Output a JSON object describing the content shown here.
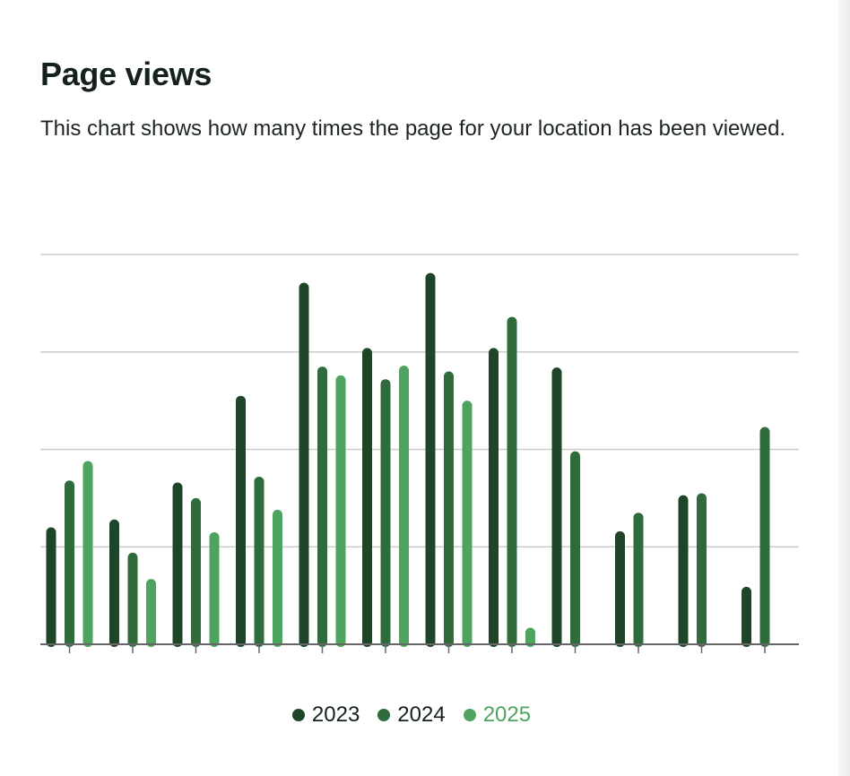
{
  "header": {
    "title": "Page views",
    "description": "This chart shows how many times the page for your location has been viewed."
  },
  "colors": {
    "series_2023": "#1f4528",
    "series_2024": "#2f6b3b",
    "series_2025": "#4ea45f",
    "gridline": "#cccccc",
    "axis": "#666666"
  },
  "chart_data": {
    "type": "bar",
    "categories": [
      "",
      "",
      "",
      "",
      "",
      "",
      "",
      "",
      "",
      "",
      "",
      ""
    ],
    "series": [
      {
        "name": "2023",
        "values": [
          1.2,
          1.28,
          1.66,
          2.55,
          3.71,
          3.04,
          3.81,
          3.04,
          2.84,
          1.16,
          1.53,
          0.59
        ]
      },
      {
        "name": "2024",
        "values": [
          1.68,
          0.94,
          1.5,
          1.72,
          2.85,
          2.72,
          2.8,
          3.36,
          1.98,
          1.35,
          1.55,
          2.23
        ]
      },
      {
        "name": "2025",
        "values": [
          1.88,
          0.67,
          1.15,
          1.38,
          2.76,
          2.86,
          2.5,
          0.17,
          null,
          null,
          null,
          null
        ]
      }
    ],
    "ylim": [
      0,
      4
    ],
    "yticks": [
      0,
      1,
      2,
      3,
      4
    ],
    "grid": true,
    "legend": "bottom-center",
    "xlabel": "",
    "ylabel": ""
  },
  "legend": {
    "items": [
      {
        "label": "2023"
      },
      {
        "label": "2024"
      },
      {
        "label": "2025"
      }
    ]
  }
}
